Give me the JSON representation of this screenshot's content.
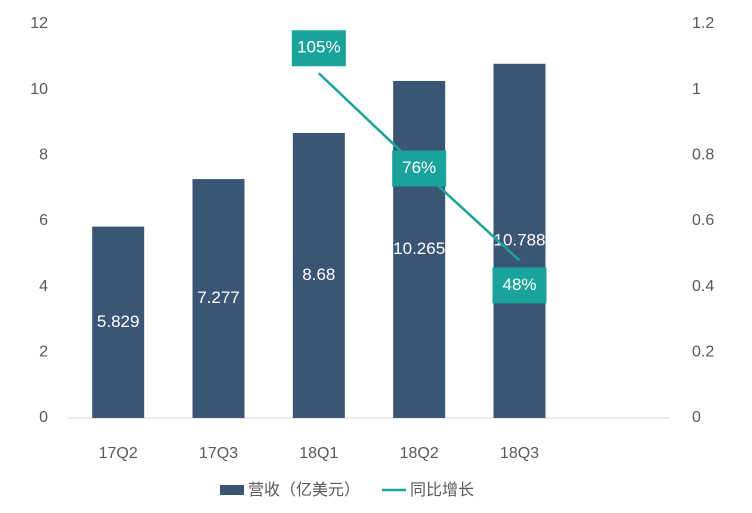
{
  "chart_data": {
    "type": "bar",
    "categories": [
      "17Q2",
      "17Q3",
      "18Q1",
      "18Q2",
      "18Q3"
    ],
    "series": [
      {
        "name": "营收（亿美元）",
        "color": "#3b5675",
        "values": [
          5.829,
          7.277,
          8.68,
          10.265,
          10.788
        ]
      },
      {
        "name": "同比增长",
        "color": "#1aa39a",
        "type": "line",
        "axis": "y2",
        "values": [
          null,
          null,
          1.05,
          0.76,
          0.48
        ],
        "value_labels": [
          null,
          null,
          "105%",
          "76%",
          "48%"
        ]
      }
    ],
    "ylim": [
      0,
      12
    ],
    "yticks": [
      0,
      2,
      4,
      6,
      8,
      10,
      12
    ],
    "y2lim": [
      0,
      1.2
    ],
    "y2ticks": [
      0,
      0.2,
      0.4,
      0.6,
      0.8,
      1,
      1.2
    ],
    "grid": false,
    "legend": "bottom"
  }
}
